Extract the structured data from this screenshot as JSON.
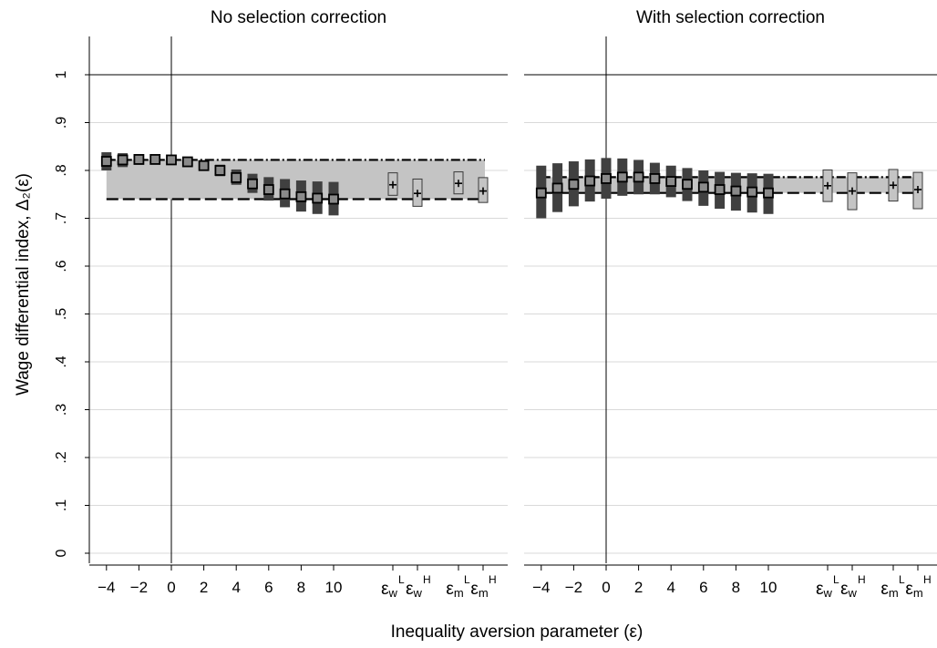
{
  "figure": {
    "ylabel": "Wage differential index, Δ₂(ε)",
    "xlabel": "Inequality aversion parameter (ε)"
  },
  "chart_data": [
    {
      "type": "scatter",
      "title": "No selection correction",
      "ylim": [
        0,
        1.1
      ],
      "yticks": [
        {
          "value": 0,
          "label": "0"
        },
        {
          "value": 0.1,
          "label": ".1"
        },
        {
          "value": 0.2,
          "label": ".2"
        },
        {
          "value": 0.3,
          "label": ".3"
        },
        {
          "value": 0.4,
          "label": ".4"
        },
        {
          "value": 0.5,
          "label": ".5"
        },
        {
          "value": 0.6,
          "label": ".6"
        },
        {
          "value": 0.7,
          "label": ".7"
        },
        {
          "value": 0.8,
          "label": ".8"
        },
        {
          "value": 0.9,
          "label": ".9"
        },
        {
          "value": 1,
          "label": "1"
        }
      ],
      "xticks": [
        "−4",
        "−2",
        "0",
        "2",
        "4",
        "6",
        "8",
        "10"
      ],
      "special_ticks": [
        {
          "base": "ε",
          "sub": "w",
          "sup": "L"
        },
        {
          "base": "ε",
          "sub": "w",
          "sup": "H"
        },
        {
          "base": "ε",
          "sub": "m",
          "sup": "L"
        },
        {
          "base": "ε",
          "sub": "m",
          "sup": "H"
        }
      ],
      "ref_lines": {
        "y": 1,
        "x": 0
      },
      "bound_upper": 0.822,
      "bound_lower": 0.74,
      "epsilon_estimates": [
        {
          "x": -4,
          "y": 0.819,
          "lo": 0.8,
          "hi": 0.838
        },
        {
          "x": -3,
          "y": 0.822,
          "lo": 0.807,
          "hi": 0.836
        },
        {
          "x": -2,
          "y": 0.823,
          "lo": 0.812,
          "hi": 0.834
        },
        {
          "x": -1,
          "y": 0.823,
          "lo": 0.815,
          "hi": 0.831
        },
        {
          "x": 0,
          "y": 0.822,
          "lo": 0.816,
          "hi": 0.828
        },
        {
          "x": 1,
          "y": 0.818,
          "lo": 0.812,
          "hi": 0.825
        },
        {
          "x": 2,
          "y": 0.81,
          "lo": 0.801,
          "hi": 0.819
        },
        {
          "x": 3,
          "y": 0.8,
          "lo": 0.788,
          "hi": 0.812
        },
        {
          "x": 4,
          "y": 0.785,
          "lo": 0.77,
          "hi": 0.802
        },
        {
          "x": 5,
          "y": 0.772,
          "lo": 0.753,
          "hi": 0.793
        },
        {
          "x": 6,
          "y": 0.76,
          "lo": 0.737,
          "hi": 0.786
        },
        {
          "x": 7,
          "y": 0.751,
          "lo": 0.723,
          "hi": 0.782
        },
        {
          "x": 8,
          "y": 0.745,
          "lo": 0.714,
          "hi": 0.779
        },
        {
          "x": 9,
          "y": 0.742,
          "lo": 0.709,
          "hi": 0.777
        },
        {
          "x": 10,
          "y": 0.74,
          "lo": 0.706,
          "hi": 0.776
        }
      ],
      "group_estimates": [
        {
          "tick": 0,
          "y": 0.77,
          "lo": 0.748,
          "hi": 0.795
        },
        {
          "tick": 1,
          "y": 0.752,
          "lo": 0.725,
          "hi": 0.782
        },
        {
          "tick": 2,
          "y": 0.773,
          "lo": 0.751,
          "hi": 0.797
        },
        {
          "tick": 3,
          "y": 0.757,
          "lo": 0.733,
          "hi": 0.785
        }
      ]
    },
    {
      "type": "scatter",
      "title": "With selection correction",
      "ylim": [
        0,
        1.1
      ],
      "xticks": [
        "−4",
        "−2",
        "0",
        "2",
        "4",
        "6",
        "8",
        "10"
      ],
      "special_ticks": [
        {
          "base": "ε",
          "sub": "w",
          "sup": "L"
        },
        {
          "base": "ε",
          "sub": "w",
          "sup": "H"
        },
        {
          "base": "ε",
          "sub": "m",
          "sup": "L"
        },
        {
          "base": "ε",
          "sub": "m",
          "sup": "H"
        }
      ],
      "ref_lines": {
        "y": 1,
        "x": 0
      },
      "bound_upper": 0.786,
      "bound_lower": 0.753,
      "epsilon_estimates": [
        {
          "x": -4,
          "y": 0.753,
          "lo": 0.7,
          "hi": 0.81
        },
        {
          "x": -3,
          "y": 0.763,
          "lo": 0.713,
          "hi": 0.815
        },
        {
          "x": -2,
          "y": 0.771,
          "lo": 0.725,
          "hi": 0.819
        },
        {
          "x": -1,
          "y": 0.778,
          "lo": 0.735,
          "hi": 0.823
        },
        {
          "x": 0,
          "y": 0.783,
          "lo": 0.741,
          "hi": 0.826
        },
        {
          "x": 1,
          "y": 0.786,
          "lo": 0.747,
          "hi": 0.825
        },
        {
          "x": 2,
          "y": 0.786,
          "lo": 0.75,
          "hi": 0.822
        },
        {
          "x": 3,
          "y": 0.783,
          "lo": 0.75,
          "hi": 0.816
        },
        {
          "x": 4,
          "y": 0.777,
          "lo": 0.744,
          "hi": 0.81
        },
        {
          "x": 5,
          "y": 0.771,
          "lo": 0.736,
          "hi": 0.805
        },
        {
          "x": 6,
          "y": 0.765,
          "lo": 0.726,
          "hi": 0.8
        },
        {
          "x": 7,
          "y": 0.76,
          "lo": 0.72,
          "hi": 0.797
        },
        {
          "x": 8,
          "y": 0.757,
          "lo": 0.716,
          "hi": 0.795
        },
        {
          "x": 9,
          "y": 0.755,
          "lo": 0.712,
          "hi": 0.794
        },
        {
          "x": 10,
          "y": 0.753,
          "lo": 0.709,
          "hi": 0.793
        }
      ],
      "group_estimates": [
        {
          "tick": 0,
          "y": 0.768,
          "lo": 0.735,
          "hi": 0.801
        },
        {
          "tick": 1,
          "y": 0.757,
          "lo": 0.718,
          "hi": 0.795
        },
        {
          "tick": 2,
          "y": 0.769,
          "lo": 0.736,
          "hi": 0.802
        },
        {
          "tick": 3,
          "y": 0.76,
          "lo": 0.72,
          "hi": 0.796
        }
      ]
    }
  ]
}
